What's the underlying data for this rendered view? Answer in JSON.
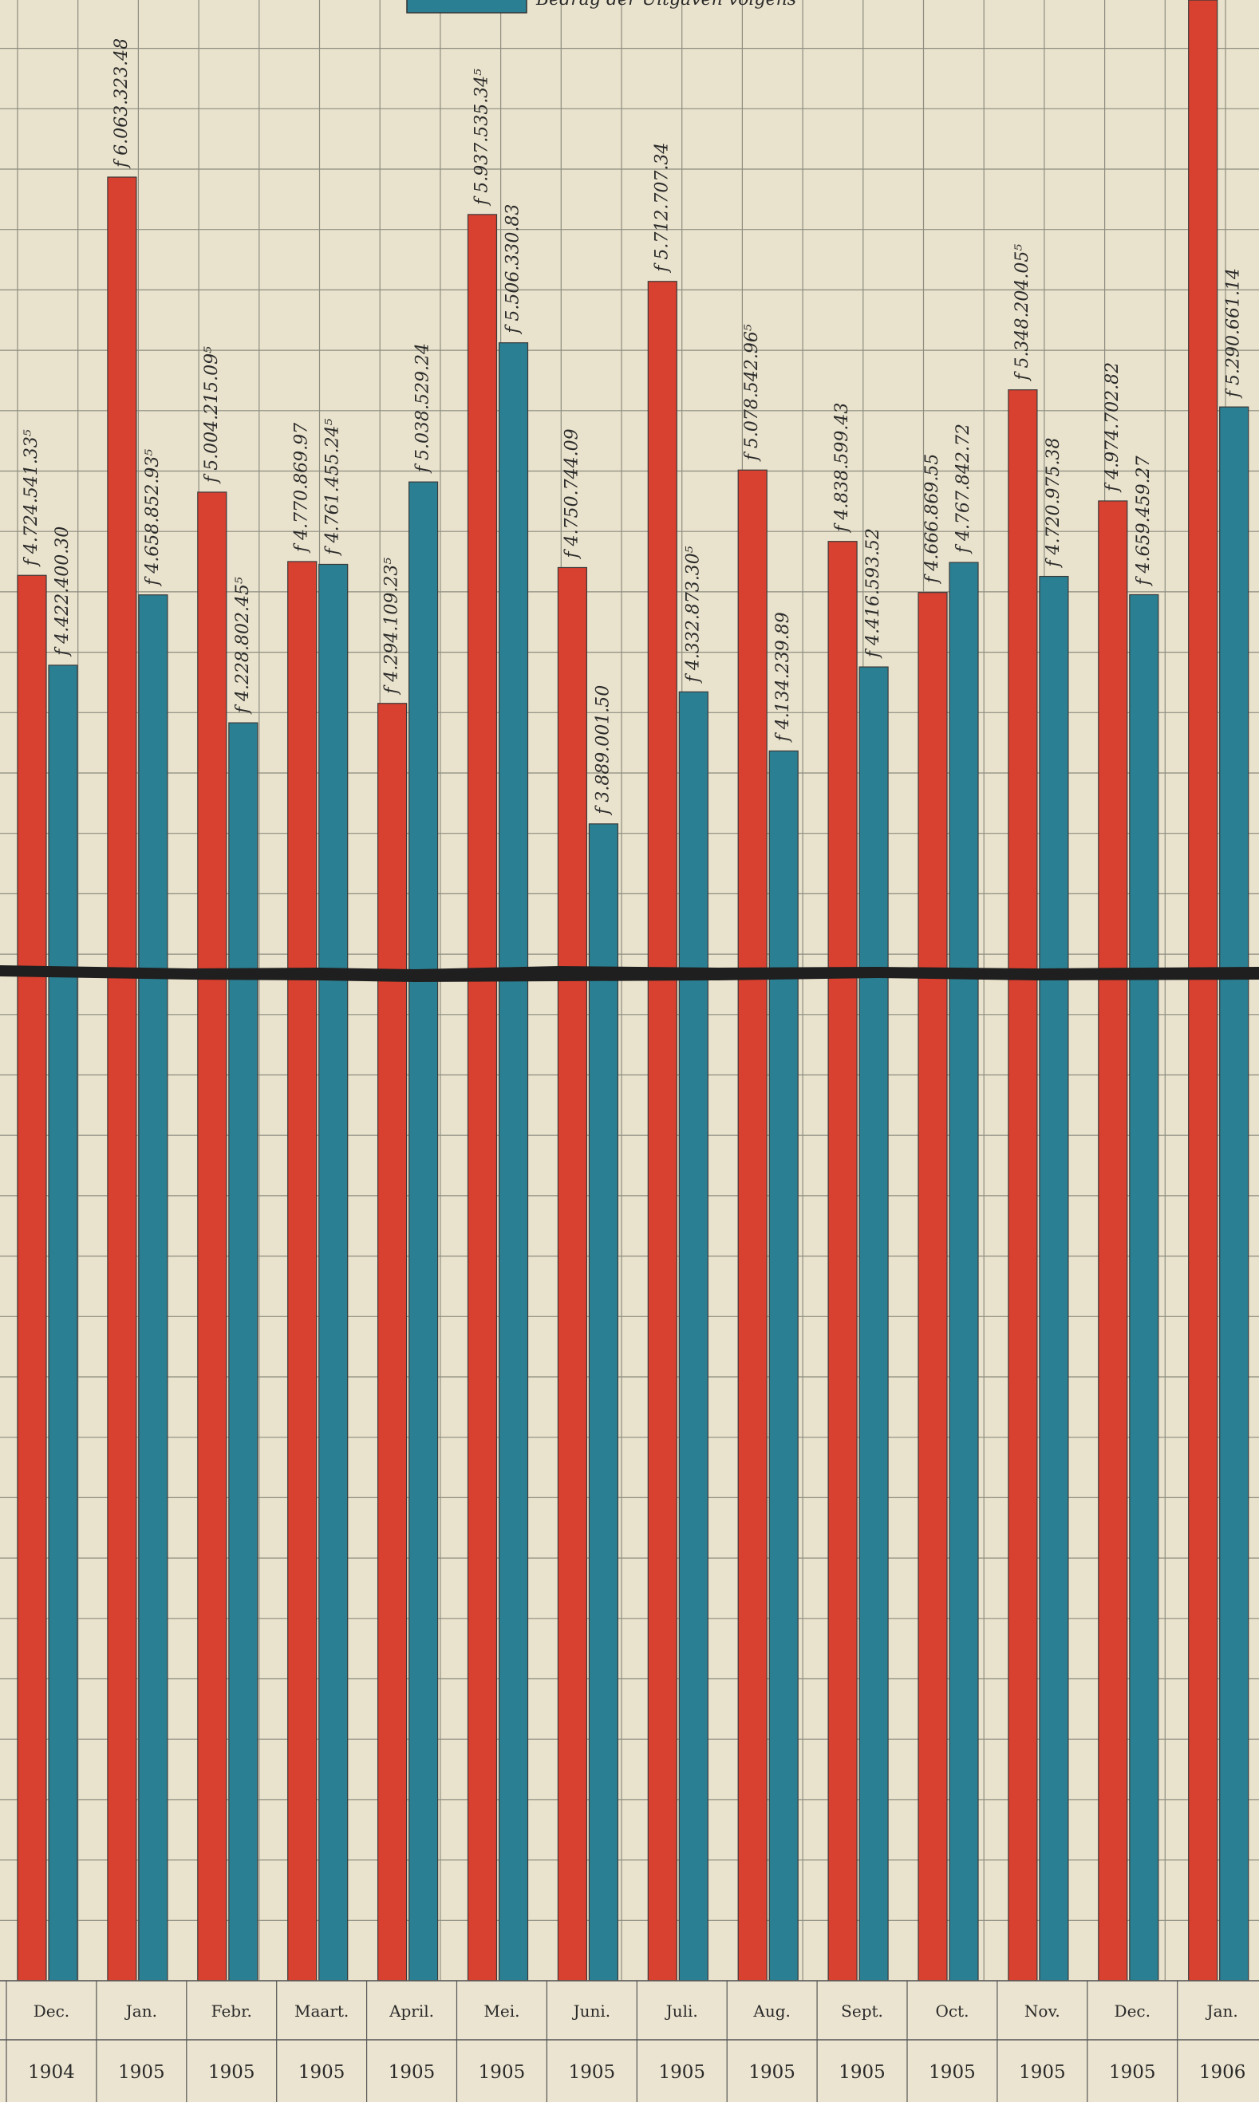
{
  "chart_data": {
    "type": "bar",
    "categories": [
      "Dec.",
      "Jan.",
      "Febr.",
      "Maart.",
      "April.",
      "Mei.",
      "Juni.",
      "Juli.",
      "Aug.",
      "Sept.",
      "Oct.",
      "Nov.",
      "Dec.",
      "Jan."
    ],
    "years": [
      "1904",
      "1905",
      "1905",
      "1905",
      "1905",
      "1905",
      "1905",
      "1905",
      "1905",
      "1905",
      "1905",
      "1905",
      "1905",
      "1906"
    ],
    "series": [
      {
        "color": "#d8402f",
        "values": [
          4724541.33,
          6063323.48,
          5004215.09,
          4770869.97,
          4294109.23,
          5937535.34,
          4750744.09,
          5712707.34,
          5078542.96,
          4838599.43,
          4666869.55,
          5348204.05,
          4974702.82,
          7200000
        ],
        "labels": [
          "f 4.724.541.33⁵",
          "f 6.063.323.48",
          "f 5.004.215.09⁵",
          "f 4.770.869.97",
          "f 4.294.109.23⁵",
          "f 5.937.535.34⁵",
          "f 4.750.744.09",
          "f 5.712.707.34",
          "f 5.078.542.96⁵",
          "f 4.838.599.43",
          "f 4.666.869.55",
          "f 5.348.204.05⁵",
          "f 4.974.702.82",
          ""
        ]
      },
      {
        "color": "#2b7f92",
        "values": [
          4422400.3,
          4658852.93,
          4228802.45,
          4761455.24,
          5038529.24,
          5506330.83,
          3889001.5,
          4332873.3,
          4134239.89,
          4416593.52,
          4767842.72,
          4720975.38,
          4659459.27,
          5290661.14
        ],
        "labels": [
          "f 4.422.400.30",
          "f 4.658.852.93⁵",
          "f 4.228.802.45⁵",
          "f 4.761.455.24⁵",
          "f 5.038.529.24",
          "f 5.506.330.83",
          "f 3.889.001.50",
          "f 4.332.873.30⁵",
          "f 4.134.239.89",
          "f 4.416.593.52",
          "f 4.767.842.72",
          "f 4.720.975.38",
          "f 4.659.459.27",
          "f 5.290.661.14"
        ]
      }
    ],
    "legend_text": "Bedrag der Uitgaven volgens"
  }
}
